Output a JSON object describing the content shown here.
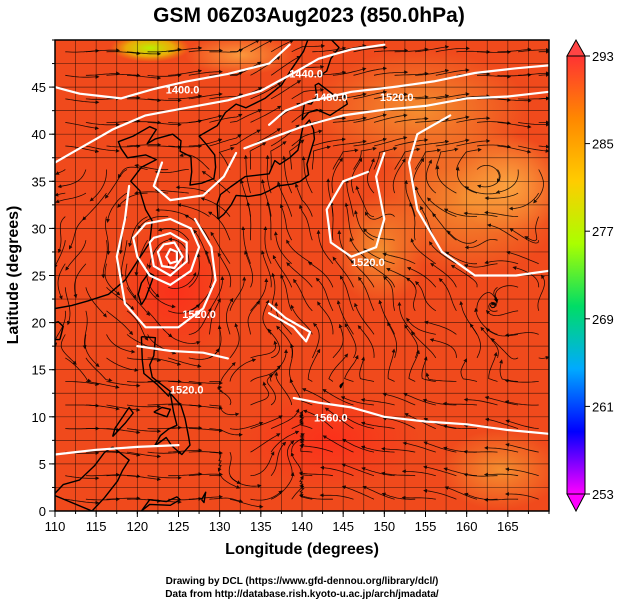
{
  "chart_data": {
    "type": "heatmap",
    "title": "GSM 06Z03Aug2023 (850.0hPa)",
    "xlabel": "Longitude (degrees)",
    "ylabel": "Latitude  (degrees)",
    "xlim": [
      110,
      170
    ],
    "ylim": [
      0,
      50
    ],
    "xticks": [
      "110",
      "115",
      "120",
      "125",
      "130",
      "135",
      "140",
      "145",
      "150",
      "155",
      "160",
      "165"
    ],
    "yticks": [
      "0",
      "5",
      "10",
      "15",
      "20",
      "25",
      "30",
      "35",
      "40",
      "45"
    ],
    "colorbar": {
      "min": 253,
      "max": 293,
      "ticks": [
        "293",
        "285",
        "277",
        "269",
        "261",
        "253"
      ],
      "colors": [
        "#ff00ff",
        "#0000ff",
        "#00aaff",
        "#00dd66",
        "#aaff00",
        "#ffcc00",
        "#ff8800",
        "#ff3333"
      ]
    },
    "contour_labels": [
      {
        "text": "1400.0",
        "lon": 125.5,
        "lat": 44.3
      },
      {
        "text": "1440.0",
        "lon": 140.5,
        "lat": 46.0
      },
      {
        "text": "1480.0",
        "lon": 143.5,
        "lat": 43.5
      },
      {
        "text": "1520.0",
        "lon": 151.5,
        "lat": 43.5
      },
      {
        "text": "1520.0",
        "lon": 148.0,
        "lat": 26.0
      },
      {
        "text": "1520.0",
        "lon": 127.5,
        "lat": 20.5
      },
      {
        "text": "1520.0",
        "lon": 126.0,
        "lat": 12.5
      },
      {
        "text": "1560.0",
        "lon": 143.5,
        "lat": 9.5
      }
    ],
    "contour_lines": [
      [
        [
          110,
          45
        ],
        [
          113,
          44.3
        ],
        [
          118,
          43.8
        ],
        [
          122,
          44.8
        ],
        [
          126,
          45.6
        ],
        [
          131,
          46.4
        ],
        [
          136,
          47.5
        ],
        [
          138.5,
          49.5
        ]
      ],
      [
        [
          110,
          37
        ],
        [
          113,
          38.5
        ],
        [
          117,
          40.5
        ],
        [
          121,
          42
        ],
        [
          126,
          42.8
        ],
        [
          131,
          43.6
        ],
        [
          135,
          44.6
        ],
        [
          139,
          46.5
        ],
        [
          142,
          48
        ],
        [
          146,
          49
        ],
        [
          150,
          49.5
        ]
      ],
      [
        [
          136,
          41
        ],
        [
          138,
          42.5
        ],
        [
          141,
          43.5
        ],
        [
          146,
          44.5
        ],
        [
          151,
          45
        ],
        [
          156,
          45.6
        ],
        [
          161,
          46.5
        ],
        [
          166,
          47
        ],
        [
          170,
          47.3
        ]
      ],
      [
        [
          133,
          38.5
        ],
        [
          136,
          39.5
        ],
        [
          140,
          40.8
        ],
        [
          145,
          42
        ],
        [
          150,
          42.6
        ],
        [
          155,
          43
        ],
        [
          160,
          43.8
        ],
        [
          165,
          44
        ],
        [
          170,
          44.5
        ]
      ],
      [
        [
          123,
          37
        ],
        [
          122,
          34.5
        ],
        [
          124,
          33
        ],
        [
          128,
          33.5
        ],
        [
          130.5,
          35.5
        ],
        [
          132,
          38
        ]
      ],
      [
        [
          158,
          42
        ],
        [
          154,
          40
        ],
        [
          153,
          37
        ],
        [
          154,
          32
        ],
        [
          157,
          27.5
        ],
        [
          161,
          25
        ],
        [
          166,
          25
        ],
        [
          170,
          25.5
        ]
      ],
      [
        [
          150,
          38
        ],
        [
          149,
          35.5
        ],
        [
          150,
          31
        ],
        [
          149,
          28
        ],
        [
          146,
          27
        ],
        [
          143.5,
          28.5
        ],
        [
          143,
          32
        ],
        [
          145,
          35
        ],
        [
          148,
          36
        ]
      ],
      [
        [
          119.5,
          29
        ],
        [
          120,
          27
        ],
        [
          121.5,
          25
        ],
        [
          124,
          24
        ],
        [
          126.5,
          25.5
        ],
        [
          127.5,
          28
        ],
        [
          126.5,
          30
        ],
        [
          124,
          31
        ],
        [
          121,
          30.5
        ],
        [
          119.5,
          29
        ]
      ],
      [
        [
          121.5,
          28.5
        ],
        [
          122,
          26
        ],
        [
          124,
          25
        ],
        [
          126,
          26.5
        ],
        [
          126,
          28.5
        ],
        [
          124,
          29.5
        ],
        [
          122,
          29
        ],
        [
          121.5,
          28.5
        ]
      ],
      [
        [
          122.5,
          27.5
        ],
        [
          123,
          26
        ],
        [
          124.5,
          25.8
        ],
        [
          125.5,
          27
        ],
        [
          124.5,
          28.5
        ],
        [
          123.2,
          28.3
        ],
        [
          122.5,
          27.5
        ]
      ],
      [
        [
          123.5,
          27
        ],
        [
          124,
          26.3
        ],
        [
          124.8,
          26.5
        ],
        [
          124.8,
          27.5
        ],
        [
          124,
          27.8
        ],
        [
          123.5,
          27
        ]
      ],
      [
        [
          119,
          34.5
        ],
        [
          118.5,
          31
        ],
        [
          117.5,
          27
        ],
        [
          118.5,
          22
        ],
        [
          121,
          19.5
        ],
        [
          125,
          19.5
        ],
        [
          128,
          21.5
        ],
        [
          129.5,
          24.5
        ],
        [
          129,
          28
        ],
        [
          127,
          31
        ]
      ],
      [
        [
          120,
          17.5
        ],
        [
          124,
          17
        ],
        [
          128,
          16.8
        ],
        [
          131,
          16.2
        ]
      ],
      [
        [
          139,
          12
        ],
        [
          142,
          11.5
        ],
        [
          146,
          11
        ],
        [
          150,
          10
        ],
        [
          155,
          9.5
        ],
        [
          160,
          9.2
        ],
        [
          165,
          8.6
        ],
        [
          170,
          8.2
        ]
      ],
      [
        [
          110,
          6
        ],
        [
          115,
          6.5
        ],
        [
          120,
          6.8
        ],
        [
          125,
          7
        ]
      ],
      [
        [
          136,
          22
        ],
        [
          138,
          20.5
        ],
        [
          141,
          19
        ],
        [
          140.5,
          18
        ],
        [
          139,
          19.5
        ],
        [
          136,
          21
        ]
      ]
    ]
  },
  "credits": {
    "line1": "Drawing by DCL (https://www.gfd-dennou.org/library/dcl/)",
    "line2": "Data from http://database.rish.kyoto-u.ac.jp/arch/jmadata/"
  }
}
